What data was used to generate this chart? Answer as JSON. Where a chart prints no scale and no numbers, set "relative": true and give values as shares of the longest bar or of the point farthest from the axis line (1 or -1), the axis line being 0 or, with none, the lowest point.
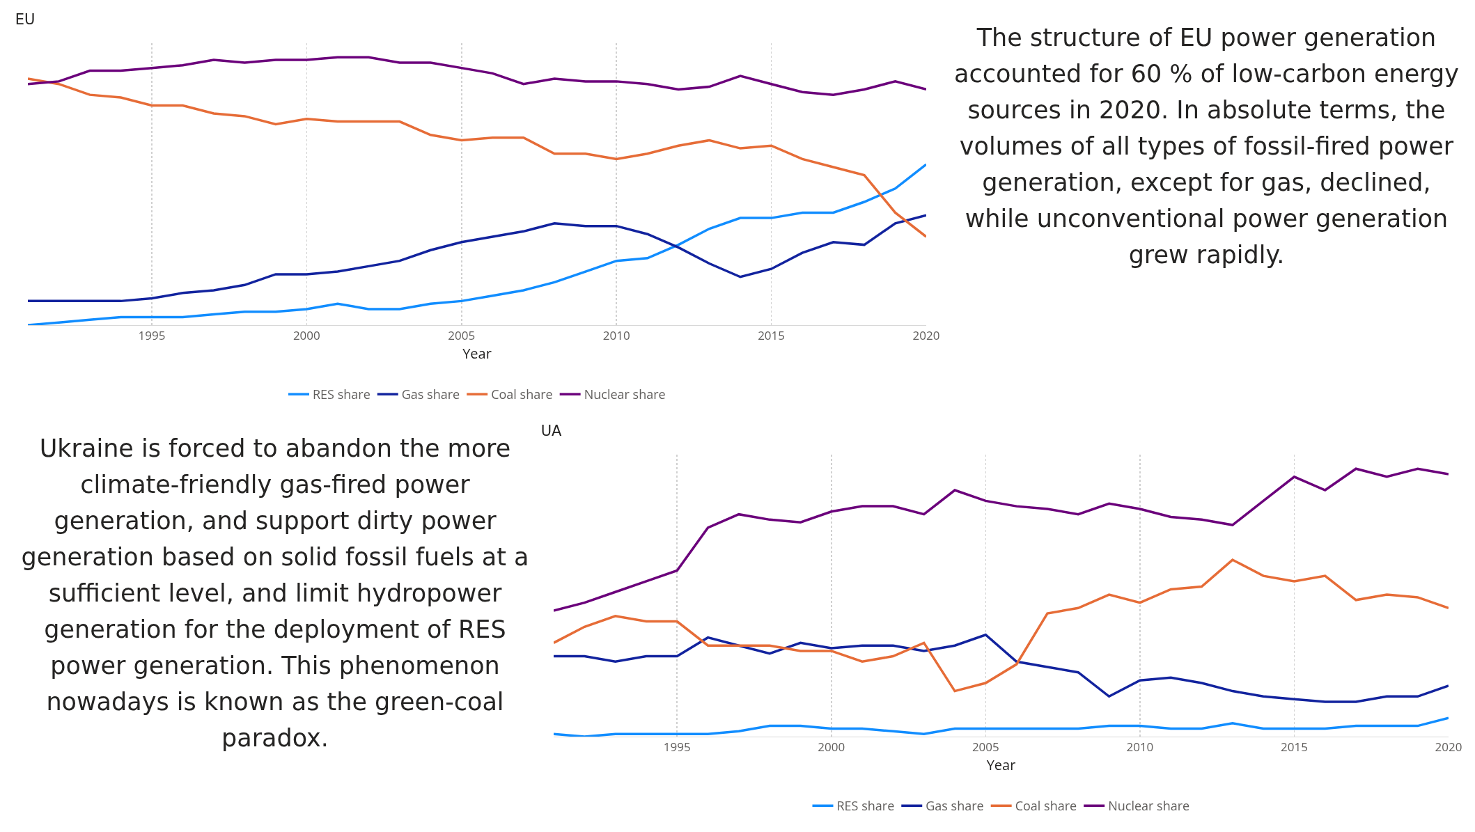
{
  "chart_data": [
    {
      "type": "line",
      "title": "EU",
      "xlabel": "Year",
      "relative": true,
      "x": [
        1991,
        1992,
        1993,
        1994,
        1995,
        1996,
        1997,
        1998,
        1999,
        2000,
        2001,
        2002,
        2003,
        2004,
        2005,
        2006,
        2007,
        2008,
        2009,
        2010,
        2011,
        2012,
        2013,
        2014,
        2015,
        2016,
        2017,
        2018,
        2019,
        2020
      ],
      "xlim": [
        1991,
        2020
      ],
      "xticks": [
        1995,
        2000,
        2005,
        2010,
        2015,
        2020
      ],
      "grid": "x",
      "legend": "bottom",
      "marker": "none",
      "line_style": "solid",
      "series": [
        {
          "name": "RES share",
          "color": "#118dff",
          "values": [
            0,
            0.01,
            0.02,
            0.03,
            0.03,
            0.03,
            0.04,
            0.05,
            0.05,
            0.06,
            0.08,
            0.06,
            0.06,
            0.08,
            0.09,
            0.11,
            0.13,
            0.16,
            0.2,
            0.24,
            0.25,
            0.3,
            0.36,
            0.4,
            0.4,
            0.42,
            0.42,
            0.46,
            0.51,
            0.6
          ]
        },
        {
          "name": "Gas share",
          "color": "#12239e",
          "values": [
            0.09,
            0.09,
            0.09,
            0.09,
            0.1,
            0.12,
            0.13,
            0.15,
            0.19,
            0.19,
            0.2,
            0.22,
            0.24,
            0.28,
            0.31,
            0.33,
            0.35,
            0.38,
            0.37,
            0.37,
            0.34,
            0.29,
            0.23,
            0.18,
            0.21,
            0.27,
            0.31,
            0.3,
            0.38,
            0.41
          ]
        },
        {
          "name": "Coal share",
          "color": "#e66c37",
          "values": [
            0.92,
            0.9,
            0.86,
            0.85,
            0.82,
            0.82,
            0.79,
            0.78,
            0.75,
            0.77,
            0.76,
            0.76,
            0.76,
            0.71,
            0.69,
            0.7,
            0.7,
            0.64,
            0.64,
            0.62,
            0.64,
            0.67,
            0.69,
            0.66,
            0.67,
            0.62,
            0.59,
            0.56,
            0.42,
            0.33
          ]
        },
        {
          "name": "Nuclear share",
          "color": "#6b007b",
          "values": [
            0.9,
            0.91,
            0.95,
            0.95,
            0.96,
            0.97,
            0.99,
            0.98,
            0.99,
            0.99,
            1,
            1,
            0.98,
            0.98,
            0.96,
            0.94,
            0.9,
            0.92,
            0.91,
            0.91,
            0.9,
            0.88,
            0.89,
            0.93,
            0.9,
            0.87,
            0.86,
            0.88,
            0.91,
            0.88
          ]
        }
      ]
    },
    {
      "type": "other",
      "annotations": [
        "The structure of EU power generation accounted for 60 % of low-carbon energy sources in 2020. In absolute terms, the volumes of all types of fossil-fired power generation, except for gas, declined, while unconventional power generation grew rapidly."
      ]
    },
    {
      "type": "other",
      "annotations": [
        "Ukraine is forced to abandon the more climate-friendly gas-fired power generation, and support dirty power generation based on solid fossil fuels at a sufficient level, and limit hydropower generation for the deployment of RES power generation. This phenomenon nowadays is known as the green-coal paradox."
      ]
    },
    {
      "type": "line",
      "title": "UA",
      "xlabel": "Year",
      "relative": true,
      "x": [
        1991,
        1992,
        1993,
        1994,
        1995,
        1996,
        1997,
        1998,
        1999,
        2000,
        2001,
        2002,
        2003,
        2004,
        2005,
        2006,
        2007,
        2008,
        2009,
        2010,
        2011,
        2012,
        2013,
        2014,
        2015,
        2016,
        2017,
        2018,
        2019,
        2020
      ],
      "xlim": [
        1991,
        2020
      ],
      "xticks": [
        1995,
        2000,
        2005,
        2010,
        2015,
        2020
      ],
      "grid": "x",
      "legend": "bottom",
      "marker": "none",
      "line_style": "solid",
      "series": [
        {
          "name": "RES share",
          "color": "#118dff",
          "values": [
            0.01,
            0,
            0.01,
            0.01,
            0.01,
            0.01,
            0.02,
            0.04,
            0.04,
            0.03,
            0.03,
            0.02,
            0.01,
            0.03,
            0.03,
            0.03,
            0.03,
            0.03,
            0.04,
            0.04,
            0.03,
            0.03,
            0.05,
            0.03,
            0.03,
            0.03,
            0.04,
            0.04,
            0.04,
            0.07
          ]
        },
        {
          "name": "Gas share",
          "color": "#12239e",
          "values": [
            0.3,
            0.3,
            0.28,
            0.3,
            0.3,
            0.37,
            0.34,
            0.31,
            0.35,
            0.33,
            0.34,
            0.34,
            0.32,
            0.34,
            0.38,
            0.28,
            0.26,
            0.24,
            0.15,
            0.21,
            0.22,
            0.2,
            0.17,
            0.15,
            0.14,
            0.13,
            0.13,
            0.15,
            0.15,
            0.19
          ]
        },
        {
          "name": "Coal share",
          "color": "#e66c37",
          "values": [
            0.35,
            0.41,
            0.45,
            0.43,
            0.43,
            0.34,
            0.34,
            0.34,
            0.32,
            0.32,
            0.28,
            0.3,
            0.35,
            0.17,
            0.2,
            0.27,
            0.46,
            0.48,
            0.53,
            0.5,
            0.55,
            0.56,
            0.66,
            0.6,
            0.58,
            0.6,
            0.51,
            0.53,
            0.52,
            0.48
          ]
        },
        {
          "name": "Nuclear share",
          "color": "#6b007b",
          "values": [
            0.47,
            0.5,
            0.54,
            0.58,
            0.62,
            0.78,
            0.83,
            0.81,
            0.8,
            0.84,
            0.86,
            0.86,
            0.83,
            0.92,
            0.88,
            0.86,
            0.85,
            0.83,
            0.87,
            0.85,
            0.82,
            0.81,
            0.79,
            0.88,
            0.97,
            0.92,
            1,
            0.97,
            1,
            0.98
          ]
        }
      ]
    }
  ]
}
